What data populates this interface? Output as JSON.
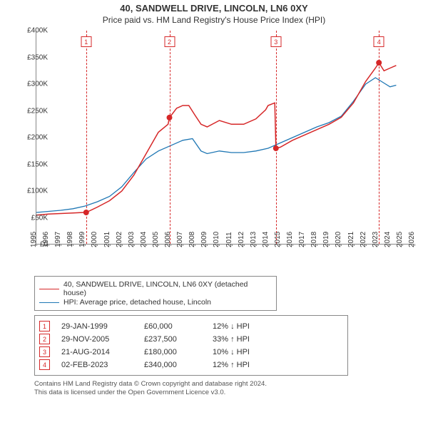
{
  "chart": {
    "title_line1": "40, SANDWELL DRIVE, LINCOLN, LN6 0XY",
    "title_line2": "Price paid vs. HM Land Registry's House Price Index (HPI)",
    "y_axis": {
      "min": 0,
      "max": 400000,
      "tick_step": 50000,
      "tick_labels": [
        "£0",
        "£50K",
        "£100K",
        "£150K",
        "£200K",
        "£250K",
        "£300K",
        "£350K",
        "£400K"
      ]
    },
    "x_axis": {
      "min": 1995,
      "max": 2026,
      "tick_step": 1,
      "tick_labels": [
        "1995",
        "1996",
        "1997",
        "1998",
        "1999",
        "2000",
        "2001",
        "2002",
        "2003",
        "2004",
        "2005",
        "2006",
        "2007",
        "2008",
        "2009",
        "2010",
        "2011",
        "2012",
        "2013",
        "2014",
        "2015",
        "2016",
        "2017",
        "2018",
        "2019",
        "2020",
        "2021",
        "2022",
        "2023",
        "2024",
        "2025",
        "2026"
      ]
    },
    "series": {
      "property": {
        "color": "#d62728",
        "label": "40, SANDWELL DRIVE, LINCOLN, LN6 0XY (detached house)",
        "data": [
          [
            1995,
            55000
          ],
          [
            1996,
            57000
          ],
          [
            1997,
            58000
          ],
          [
            1998,
            59000
          ],
          [
            1998.9,
            60000
          ],
          [
            1999.08,
            60000
          ],
          [
            2000,
            70000
          ],
          [
            2001,
            82000
          ],
          [
            2002,
            100000
          ],
          [
            2003,
            130000
          ],
          [
            2004,
            170000
          ],
          [
            2005,
            210000
          ],
          [
            2005.8,
            225000
          ],
          [
            2005.91,
            237500
          ],
          [
            2006,
            240000
          ],
          [
            2006.5,
            255000
          ],
          [
            2007,
            260000
          ],
          [
            2007.5,
            260000
          ],
          [
            2008,
            242000
          ],
          [
            2008.5,
            225000
          ],
          [
            2009,
            220000
          ],
          [
            2010,
            232000
          ],
          [
            2011,
            225000
          ],
          [
            2012,
            225000
          ],
          [
            2013,
            235000
          ],
          [
            2013.8,
            252000
          ],
          [
            2014,
            260000
          ],
          [
            2014.55,
            265000
          ],
          [
            2014.64,
            180000
          ],
          [
            2015,
            182000
          ],
          [
            2016,
            195000
          ],
          [
            2017,
            205000
          ],
          [
            2018,
            215000
          ],
          [
            2019,
            225000
          ],
          [
            2020,
            238000
          ],
          [
            2021,
            265000
          ],
          [
            2022,
            305000
          ],
          [
            2022.8,
            330000
          ],
          [
            2023.09,
            340000
          ],
          [
            2023.5,
            325000
          ],
          [
            2024,
            330000
          ],
          [
            2024.5,
            335000
          ]
        ]
      },
      "hpi": {
        "color": "#1f77b4",
        "label": "HPI: Average price, detached house, Lincoln",
        "data": [
          [
            1995,
            60000
          ],
          [
            1996,
            62000
          ],
          [
            1997,
            64000
          ],
          [
            1998,
            67000
          ],
          [
            1999,
            72000
          ],
          [
            2000,
            80000
          ],
          [
            2001,
            90000
          ],
          [
            2002,
            108000
          ],
          [
            2003,
            135000
          ],
          [
            2004,
            160000
          ],
          [
            2005,
            175000
          ],
          [
            2006,
            185000
          ],
          [
            2007,
            195000
          ],
          [
            2007.8,
            198000
          ],
          [
            2008.5,
            175000
          ],
          [
            2009,
            170000
          ],
          [
            2010,
            175000
          ],
          [
            2011,
            172000
          ],
          [
            2012,
            172000
          ],
          [
            2013,
            175000
          ],
          [
            2014,
            180000
          ],
          [
            2015,
            190000
          ],
          [
            2016,
            200000
          ],
          [
            2017,
            210000
          ],
          [
            2018,
            220000
          ],
          [
            2019,
            228000
          ],
          [
            2020,
            240000
          ],
          [
            2021,
            268000
          ],
          [
            2022,
            300000
          ],
          [
            2022.8,
            312000
          ],
          [
            2023.5,
            302000
          ],
          [
            2024,
            295000
          ],
          [
            2024.5,
            298000
          ]
        ]
      }
    },
    "events": [
      {
        "n": "1",
        "year": 1999.08,
        "price": 60000
      },
      {
        "n": "2",
        "year": 2005.91,
        "price": 237500
      },
      {
        "n": "3",
        "year": 2014.64,
        "price": 180000
      },
      {
        "n": "4",
        "year": 2023.09,
        "price": 340000
      }
    ],
    "marker_color": "#d62728",
    "grid_color": "#e0e0e0"
  },
  "legend": {
    "rows": [
      {
        "color": "#d62728",
        "text": "40, SANDWELL DRIVE, LINCOLN, LN6 0XY (detached house)"
      },
      {
        "color": "#1f77b4",
        "text": "HPI: Average price, detached house, Lincoln"
      }
    ]
  },
  "transactions": [
    {
      "n": "1",
      "date": "29-JAN-1999",
      "price": "£60,000",
      "delta": "12% ↓ HPI"
    },
    {
      "n": "2",
      "date": "29-NOV-2005",
      "price": "£237,500",
      "delta": "33% ↑ HPI"
    },
    {
      "n": "3",
      "date": "21-AUG-2014",
      "price": "£180,000",
      "delta": "10% ↓ HPI"
    },
    {
      "n": "4",
      "date": "02-FEB-2023",
      "price": "£340,000",
      "delta": "12% ↑ HPI"
    }
  ],
  "footer": {
    "line1": "Contains HM Land Registry data © Crown copyright and database right 2024.",
    "line2": "This data is licensed under the Open Government Licence v3.0."
  }
}
